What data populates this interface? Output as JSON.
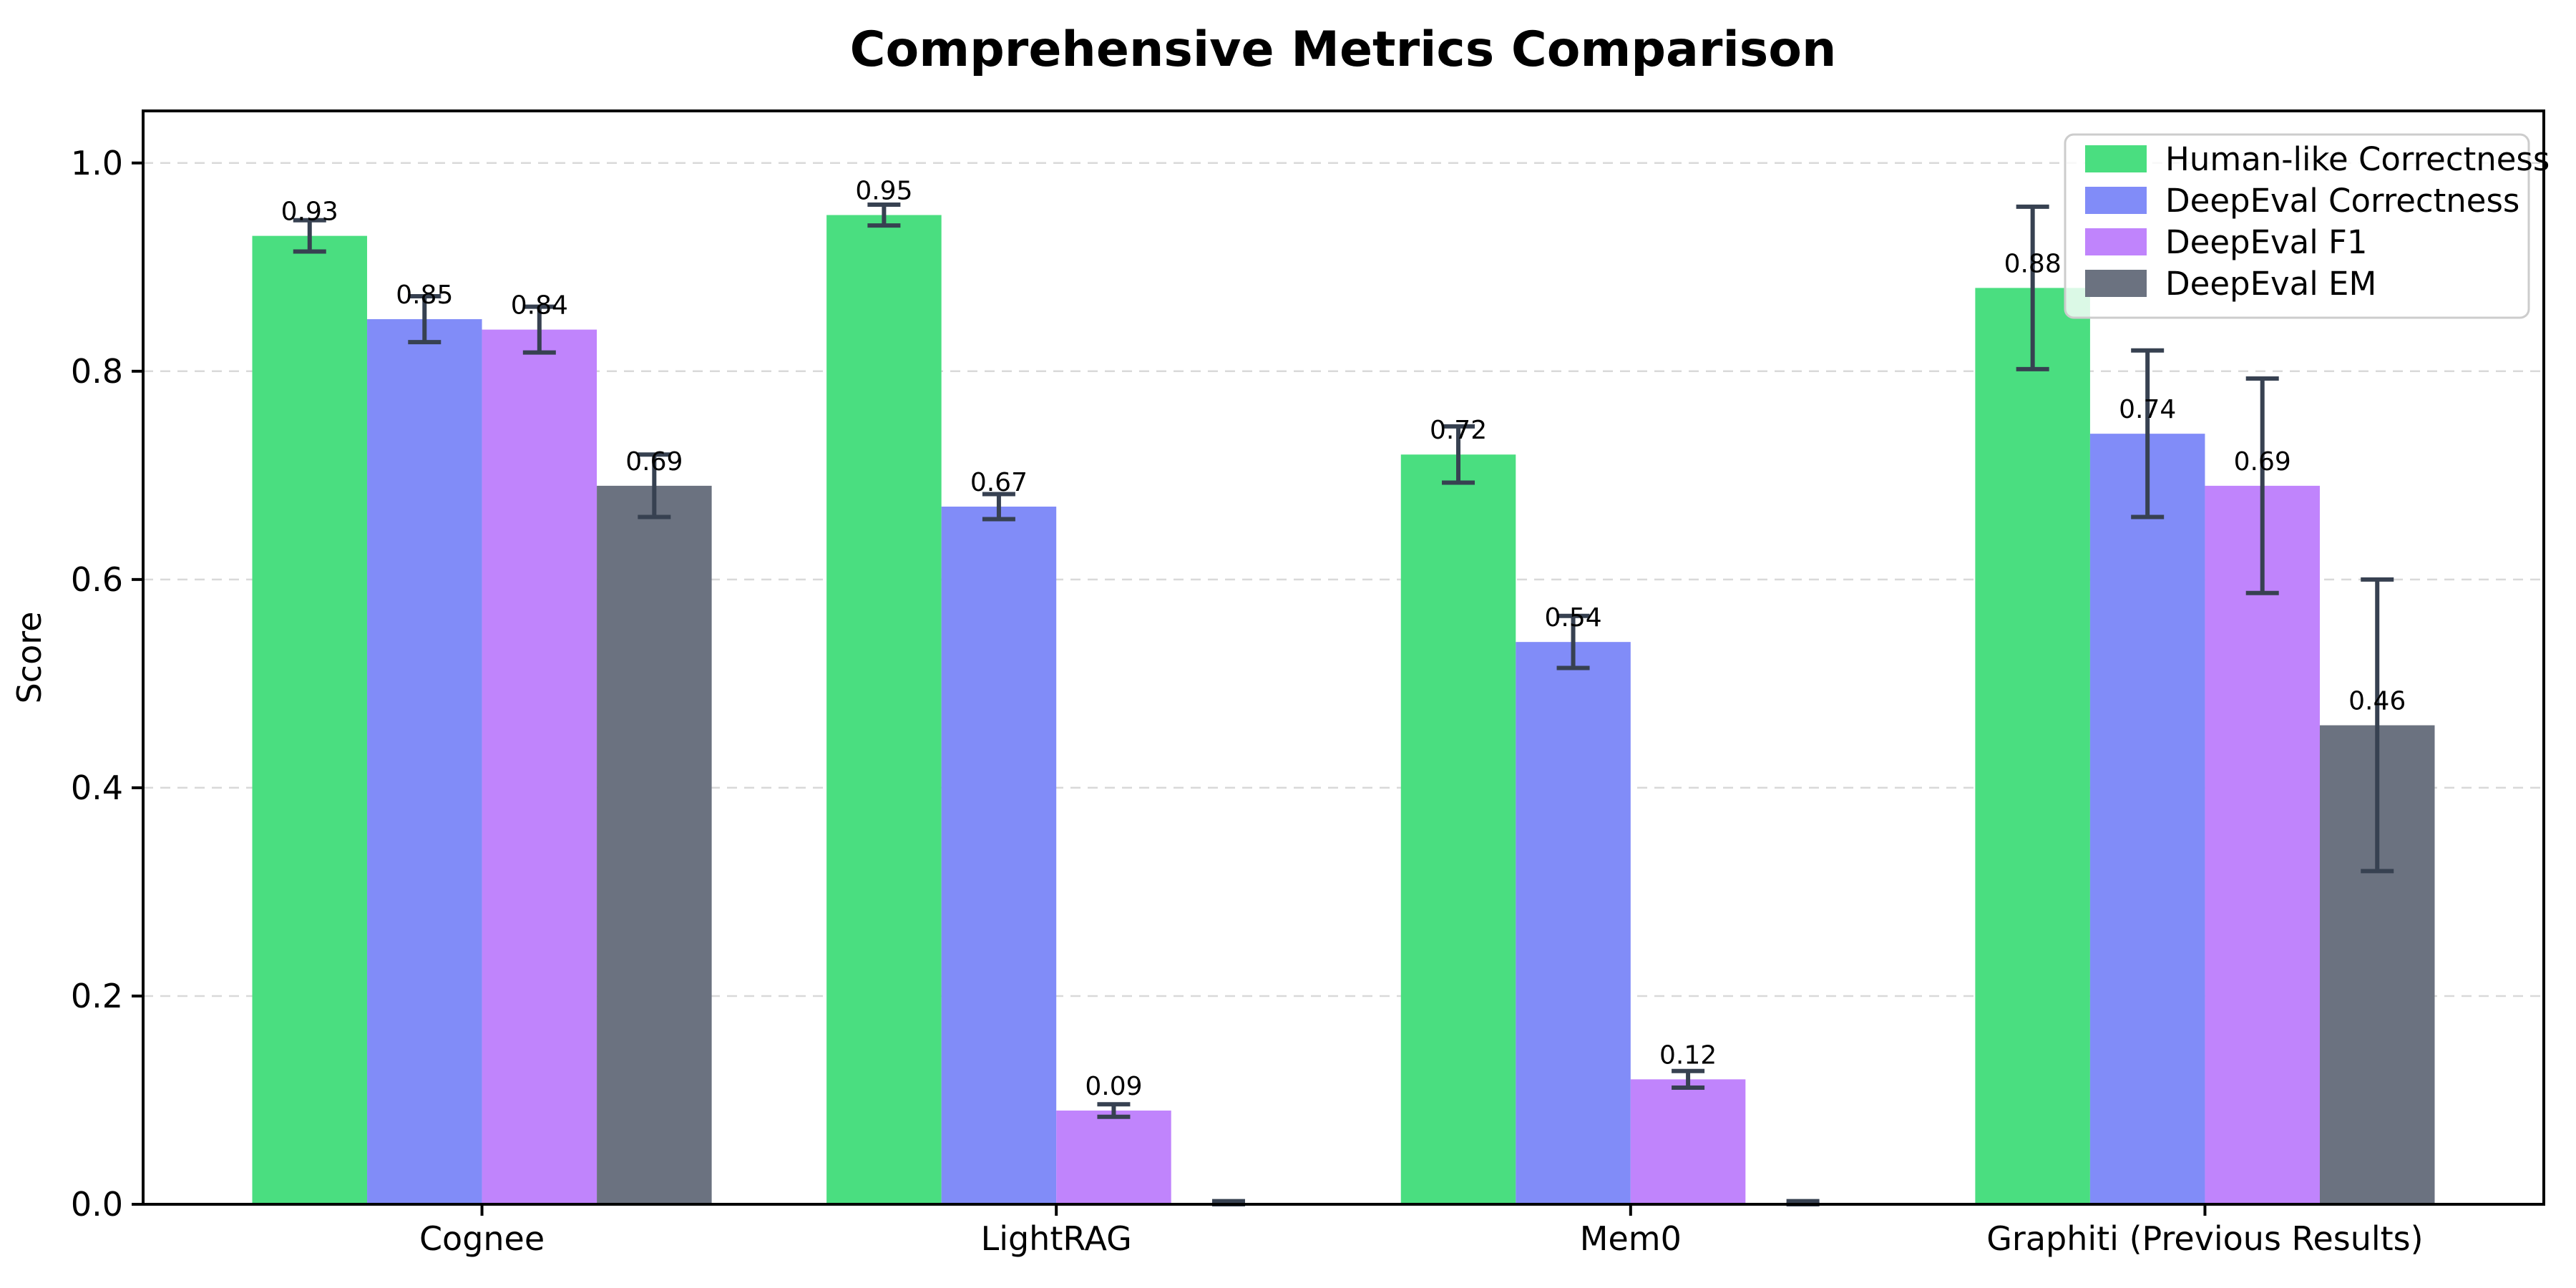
{
  "chart_data": {
    "type": "bar",
    "title": "Comprehensive Metrics Comparison",
    "xlabel": "",
    "ylabel": "Score",
    "categories": [
      "Cognee",
      "LightRAG",
      "Mem0",
      "Graphiti (Previous Results)"
    ],
    "series": [
      {
        "name": "Human-like Correctness",
        "color": "#4ade80",
        "values": [
          0.93,
          0.95,
          0.72,
          0.88
        ],
        "errors": [
          0.015,
          0.01,
          0.027,
          0.078
        ],
        "labels": [
          "0.93",
          "0.95",
          "0.72",
          "0.88"
        ]
      },
      {
        "name": "DeepEval Correctness",
        "color": "#818cf8",
        "values": [
          0.85,
          0.67,
          0.54,
          0.74
        ],
        "errors": [
          0.022,
          0.012,
          0.025,
          0.08
        ],
        "labels": [
          "0.85",
          "0.67",
          "0.54",
          "0.74"
        ]
      },
      {
        "name": "DeepEval F1",
        "color": "#c084fc",
        "values": [
          0.84,
          0.09,
          0.12,
          0.69
        ],
        "errors": [
          0.022,
          0.006,
          0.008,
          0.103
        ],
        "labels": [
          "0.84",
          "0.09",
          "0.12",
          "0.69"
        ]
      },
      {
        "name": "DeepEval EM",
        "color": "#6b7280",
        "values": [
          0.69,
          0.0,
          0.0,
          0.46
        ],
        "errors": [
          0.03,
          0.003,
          0.003,
          0.14
        ],
        "labels": [
          "0.69",
          "",
          "",
          "0.46"
        ]
      }
    ],
    "ylim": [
      0,
      1.05
    ],
    "yticks": [
      0.0,
      0.2,
      0.4,
      0.6,
      0.8,
      1.0
    ],
    "grid": "dashed-horizontal",
    "legend_position": "upper right",
    "colors": {
      "error_bar": "#374151",
      "grid": "#d9d9d9",
      "axis": "#000000",
      "legend_border": "#cccccc",
      "legend_bg": "#ffffff",
      "legend_bg_alpha": 0.8,
      "background": "#ffffff",
      "text": "#000000"
    }
  }
}
